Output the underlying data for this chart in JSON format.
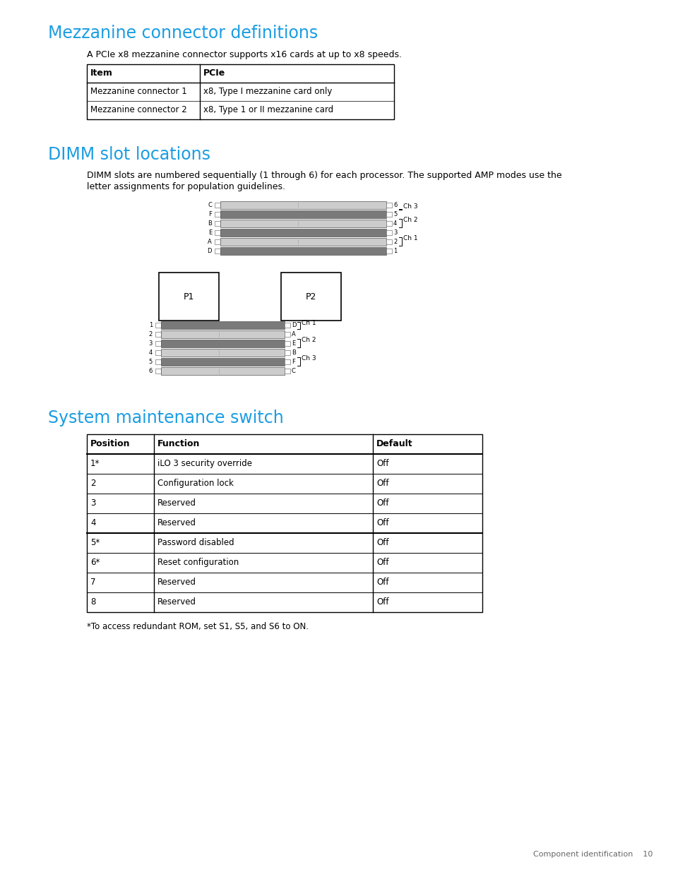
{
  "title1": "Mezzanine connector definitions",
  "subtitle1": "A PCIe x8 mezzanine connector supports x16 cards at up to x8 speeds.",
  "table1_headers": [
    "Item",
    "PCIe"
  ],
  "table1_rows": [
    [
      "Mezzanine connector 1",
      "x8, Type I mezzanine card only"
    ],
    [
      "Mezzanine connector 2",
      "x8, Type 1 or II mezzanine card"
    ]
  ],
  "title2": "DIMM slot locations",
  "subtitle2_line1": "DIMM slots are numbered sequentially (1 through 6) for each processor. The supported AMP modes use the",
  "subtitle2_line2": "letter assignments for population guidelines.",
  "title3": "System maintenance switch",
  "table3_headers": [
    "Position",
    "Function",
    "Default"
  ],
  "table3_rows": [
    [
      "1*",
      "iLO 3 security override",
      "Off"
    ],
    [
      "2",
      "Configuration lock",
      "Off"
    ],
    [
      "3",
      "Reserved",
      "Off"
    ],
    [
      "4",
      "Reserved",
      "Off"
    ],
    [
      "5*",
      "Password disabled",
      "Off"
    ],
    [
      "6*",
      "Reset configuration",
      "Off"
    ],
    [
      "7",
      "Reserved",
      "Off"
    ],
    [
      "8",
      "Reserved",
      "Off"
    ]
  ],
  "footnote": "*To access redundant ROM, set S1, S5, and S6 to ON.",
  "footer": "Component identification    10",
  "header_color": "#1b9de2",
  "bg_color": "#FFFFFF",
  "text_color": "#000000",
  "upper_labels_left": [
    "C",
    "F",
    "B",
    "E",
    "A",
    "D"
  ],
  "upper_labels_right": [
    "6",
    "5",
    "4",
    "3",
    "2",
    "1"
  ],
  "upper_filled": [
    false,
    true,
    false,
    true,
    false,
    true
  ],
  "lower_labels_left": [
    "1",
    "2",
    "3",
    "4",
    "5",
    "6"
  ],
  "lower_labels_right": [
    "D",
    "A",
    "E",
    "B",
    "F",
    "C"
  ],
  "lower_filled": [
    true,
    false,
    true,
    false,
    true,
    false
  ]
}
